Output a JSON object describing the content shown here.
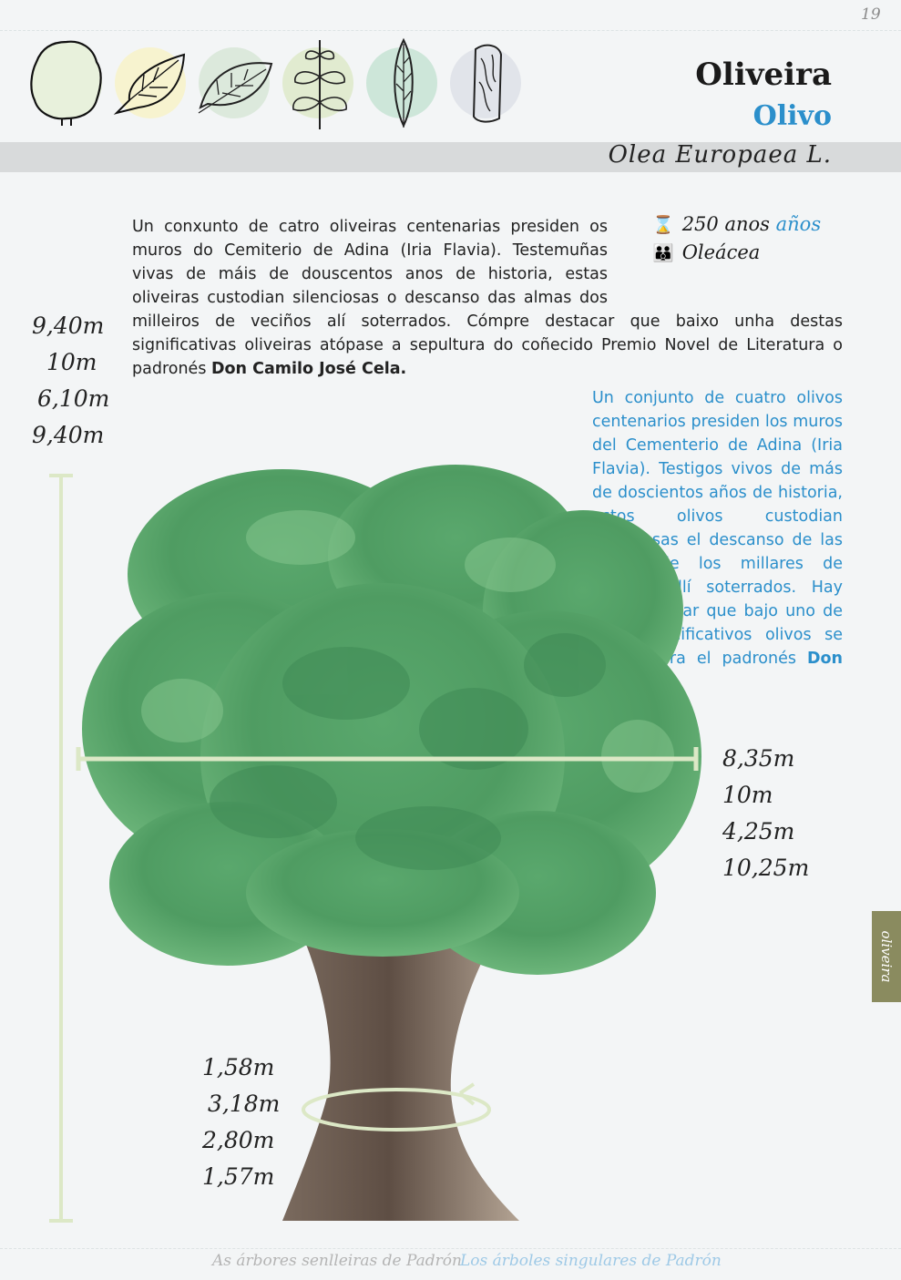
{
  "page_number": "19",
  "title_galician": "Oliveira",
  "title_spanish": "Olivo",
  "scientific_name": "Olea Europaea L.",
  "leaf_icons": [
    "crown-silhouette-icon",
    "serrated-leaf-icon",
    "ovate-leaf-icon",
    "opposite-leaves-branch-icon",
    "lanceolate-leaf-icon",
    "bark-icon"
  ],
  "age": {
    "value": "250",
    "unit_galician": "anos",
    "unit_spanish": "años",
    "icon": "hourglass-icon"
  },
  "family": {
    "value": "Oleácea",
    "icon": "family-icon"
  },
  "text_galician": {
    "body": "Un conxunto de catro oliveiras centenarias presiden os muros do Cemiterio de Adina (Iria Flavia). Testemuñas vivas de máis de douscentos anos de historia, estas oliveiras custodian silenciosas o descanso das almas dos milleiros de veciños alí soterrados. Cómpre destacar que baixo unha destas significativas oliveiras atópase a sepultura do coñecido Premio Novel de Literatura o padronés ",
    "bold": "Don Camilo José Cela",
    "end": "."
  },
  "text_spanish": {
    "body": "Un conjunto de cuatro olivos centenarios presiden los muros del Cementerio de Adina (Iria Flavia). Testigos vivos de más de doscientos años de historia, estos olivos custodian silenciosas el descanso de las almas de los millares de vecinos allí soterrados. Hay que destacar que bajo uno de estos significativos olivos se encuentra la sepultura del conocido Premio Nobel de Literatura el padronés ",
    "bold": "Don Camilo José Cela",
    "end": "."
  },
  "height_measurements": [
    "9,40m",
    "10m",
    "6,10m",
    "9,40m"
  ],
  "crown_measurements": [
    "8,35m",
    "10m",
    "4,25m",
    "10,25m"
  ],
  "trunk_measurements": [
    "1,58m",
    "3,18m",
    "2,80m",
    "1,57m"
  ],
  "side_tab_label": "oliveira",
  "footer_galician": "As árbores senlleiras de Padrón",
  "footer_spanish": "Los árboles singulares de Padrón",
  "colors": {
    "accent_blue": "#2b8fcb",
    "band_gray": "#d8dadb",
    "side_tab": "#8a8b5f",
    "measure_line": "#dce8c6",
    "circle_colors": [
      "#e3edd6",
      "#f7f3cf",
      "#dce9dc",
      "#e1ebd0",
      "#cde6d9",
      "#e1e4ea"
    ]
  }
}
